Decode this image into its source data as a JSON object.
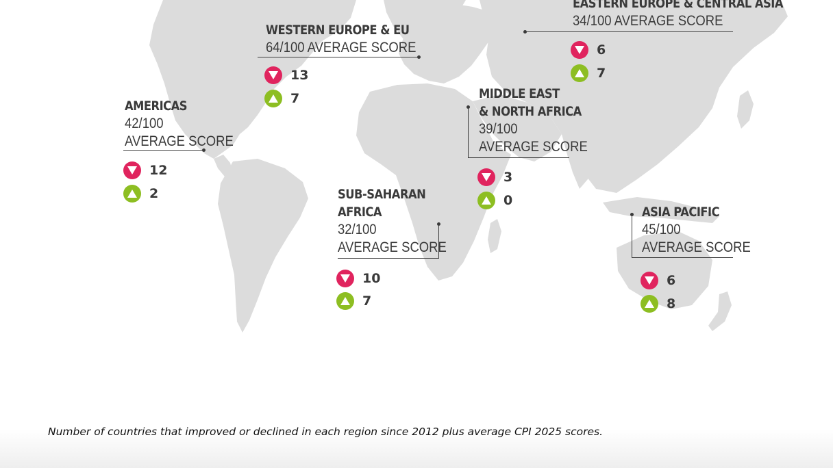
{
  "colors": {
    "land": "#dcdcdc",
    "decline": "#e0245e",
    "improve": "#8dbe22",
    "text": "#3a3a3a"
  },
  "icons": {
    "decline": "triangle-down-icon",
    "improve": "triangle-up-icon"
  },
  "regions": {
    "eastern_europe_central_asia": {
      "name_lines": [
        "EASTERN EUROPE & CENTRAL ASIA"
      ],
      "score_lines": [
        "34/100 AVERAGE SCORE"
      ],
      "declined": "6",
      "improved": "7"
    },
    "western_europe_eu": {
      "name_lines": [
        "WESTERN EUROPE & EU"
      ],
      "score_lines": [
        "64/100 AVERAGE SCORE"
      ],
      "declined": "13",
      "improved": "7"
    },
    "americas": {
      "name_lines": [
        "AMERICAS"
      ],
      "score_lines": [
        "42/100",
        "AVERAGE SCORE"
      ],
      "declined": "12",
      "improved": "2"
    },
    "middle_east_north_africa": {
      "name_lines": [
        "MIDDLE EAST",
        "& NORTH AFRICA"
      ],
      "score_lines": [
        "39/100",
        "AVERAGE SCORE"
      ],
      "declined": "3",
      "improved": "0"
    },
    "sub_saharan_africa": {
      "name_lines": [
        "SUB-SAHARAN",
        "AFRICA"
      ],
      "score_lines": [
        "32/100",
        "AVERAGE SCORE"
      ],
      "declined": "10",
      "improved": "7"
    },
    "asia_pacific": {
      "name_lines": [
        "ASIA PACIFIC"
      ],
      "score_lines": [
        "45/100",
        "AVERAGE SCORE"
      ],
      "declined": "6",
      "improved": "8"
    }
  },
  "caption": "Number of countries that improved or declined in each region since 2012 plus average CPI 2025 scores."
}
